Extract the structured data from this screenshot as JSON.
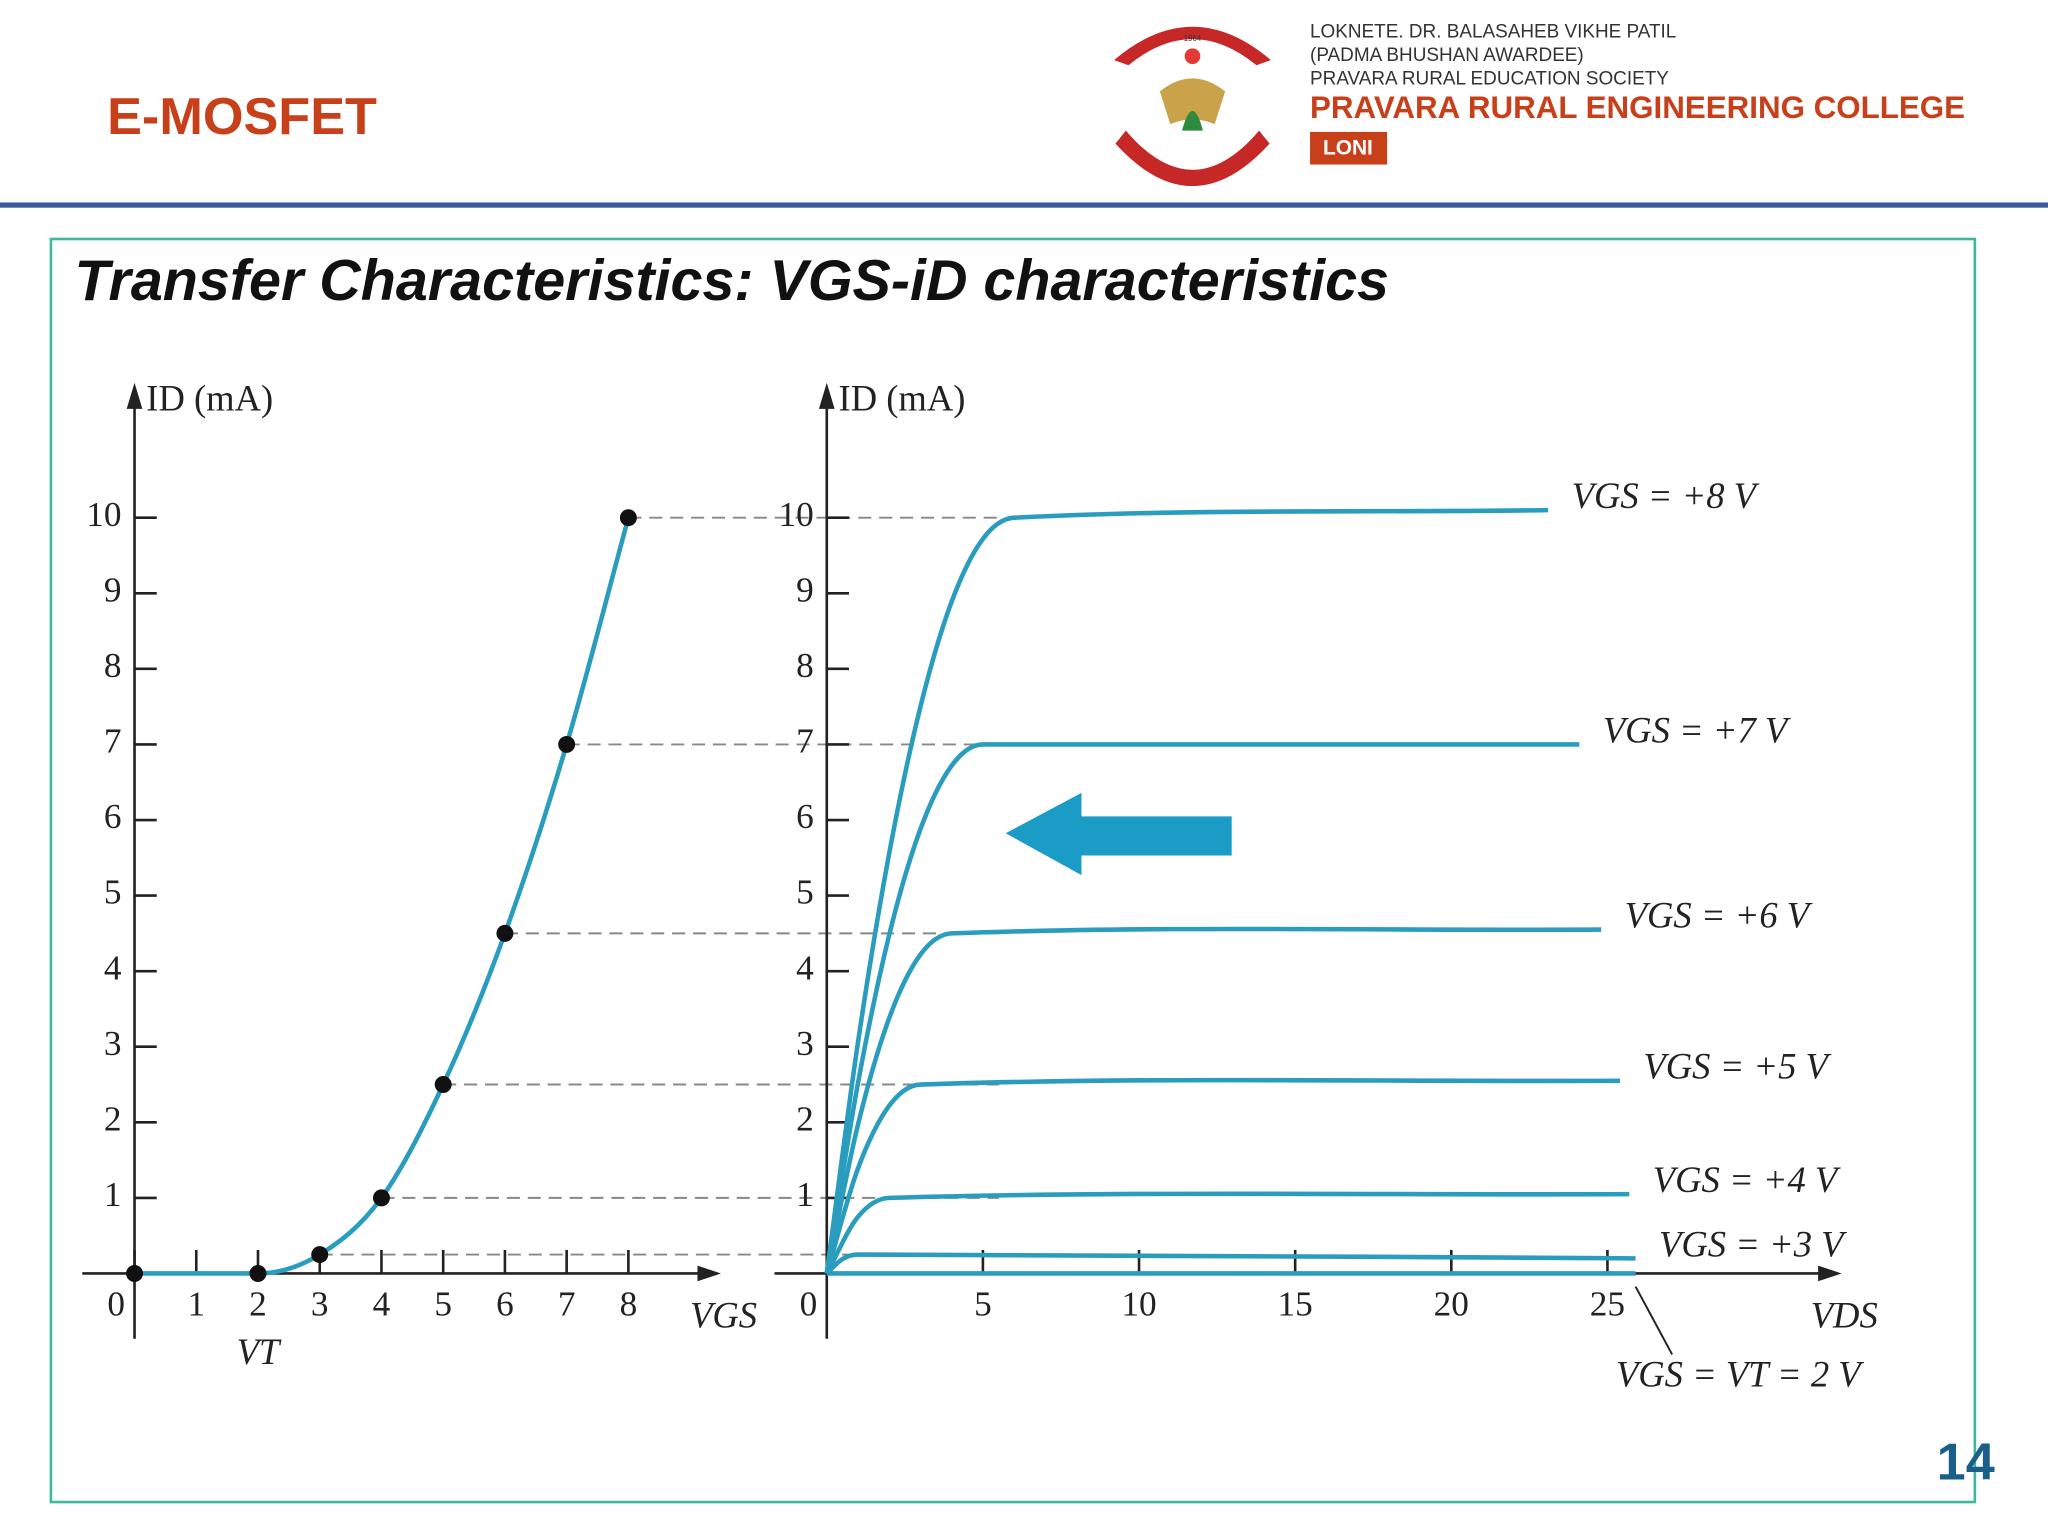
{
  "header": {
    "title": "E-MOSFET",
    "logo_text": [
      "PRAVARA",
      "1964"
    ],
    "institution": [
      "LOKNETE. DR. BALASAHEB VIKHE PATIL",
      "(PADMA BHUSHAN AWARDEE)",
      "PRAVARA RURAL EDUCATION SOCIETY"
    ],
    "college": "PRAVARA RURAL ENGINEERING COLLEGE",
    "location": "LONI"
  },
  "slide": {
    "title": "Transfer Characteristics: VGS-iD characteristics",
    "page_number": 14
  },
  "chart_data": [
    {
      "type": "line",
      "x_label": "VGS",
      "y_label": "ID (mA)",
      "annotations": [
        {
          "text": "VT",
          "x": 2
        }
      ],
      "x": [
        0,
        2,
        3,
        4,
        5,
        6,
        7,
        8
      ],
      "series": [
        {
          "color": "#2a9dbf",
          "values": [
            0,
            0,
            0.25,
            1,
            2.5,
            4.5,
            7,
            10
          ]
        }
      ],
      "markers": true,
      "xlim": [
        0,
        9.5
      ],
      "ylim": [
        0,
        11.7
      ],
      "xticks": [
        0,
        1,
        2,
        3,
        4,
        5,
        6,
        7,
        8
      ],
      "yticks": [
        1,
        2,
        3,
        4,
        5,
        6,
        7,
        8,
        9,
        10
      ]
    },
    {
      "type": "line",
      "x_label": "VDS",
      "y_label": "ID (mA)",
      "series": [
        {
          "name": "VGS = +8 V",
          "color": "#2a9dbf",
          "x": [
            0,
            1,
            2,
            3,
            4,
            5,
            6,
            23.1
          ],
          "values": [
            0,
            3.06,
            5.56,
            7.5,
            8.89,
            9.72,
            10,
            10.1
          ]
        },
        {
          "name": "VGS = +7 V",
          "color": "#2a9dbf",
          "x": [
            0,
            1,
            2,
            3,
            4,
            5,
            24.1
          ],
          "values": [
            0,
            2.52,
            4.48,
            5.88,
            6.72,
            7,
            7
          ]
        },
        {
          "name": "VGS = +6 V",
          "color": "#2a9dbf",
          "x": [
            0,
            1,
            2,
            3,
            4,
            24.8
          ],
          "values": [
            0,
            1.97,
            3.38,
            4.22,
            4.5,
            4.55
          ]
        },
        {
          "name": "VGS = +5 V",
          "color": "#2a9dbf",
          "x": [
            0,
            1,
            2,
            3,
            25.4
          ],
          "values": [
            0,
            1.39,
            2.22,
            2.5,
            2.55
          ]
        },
        {
          "name": "VGS = +4 V",
          "color": "#2a9dbf",
          "x": [
            0,
            1,
            2,
            25.7
          ],
          "values": [
            0,
            0.75,
            1,
            1.05
          ]
        },
        {
          "name": "VGS = +3 V",
          "color": "#2a9dbf",
          "x": [
            0,
            0.5,
            1,
            25.9
          ],
          "values": [
            0,
            0.19,
            0.25,
            0.2
          ]
        },
        {
          "name": "VGS = VT = 2 V",
          "color": "#2a9dbf",
          "x": [
            0,
            25.9
          ],
          "values": [
            0,
            0
          ]
        }
      ],
      "xlim": [
        0,
        32.5
      ],
      "ylim": [
        0,
        11.7
      ],
      "xticks": [
        0,
        5,
        10,
        15,
        20,
        25
      ],
      "yticks": [
        1,
        2,
        3,
        4,
        5,
        6,
        7,
        8,
        9,
        10
      ]
    }
  ]
}
